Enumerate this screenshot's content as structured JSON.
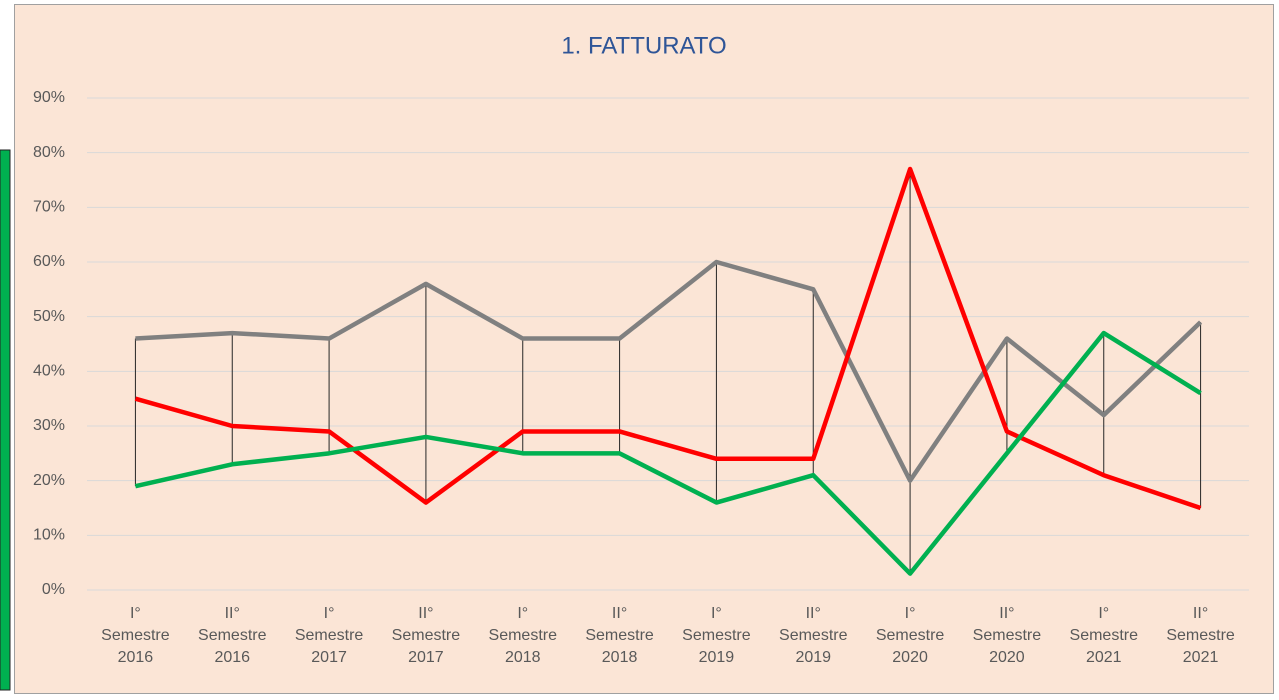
{
  "chart_data": {
    "type": "line",
    "title": "1. FATTURATO",
    "categories": [
      "I° Semestre 2016",
      "II° Semestre 2016",
      "I° Semestre 2017",
      "II° Semestre 2017",
      "I° Semestre 2018",
      "II° Semestre 2018",
      "I° Semestre 2019",
      "II° Semestre 2019",
      "I° Semestre 2020",
      "II° Semestre 2020",
      "I° Semestre 2021",
      "II° Semestre 2021"
    ],
    "series": [
      {
        "color": "#808080",
        "values": [
          46,
          47,
          46,
          56,
          46,
          46,
          60,
          55,
          20,
          46,
          32,
          49
        ]
      },
      {
        "color": "#ff0000",
        "values": [
          35,
          30,
          29,
          16,
          29,
          29,
          24,
          24,
          77,
          29,
          21,
          15
        ]
      },
      {
        "color": "#00b050",
        "values": [
          19,
          23,
          25,
          28,
          25,
          25,
          16,
          21,
          3,
          25,
          47,
          36
        ]
      }
    ],
    "ylim": [
      0,
      90
    ],
    "yticks": [
      {
        "value": 0,
        "label": "0%"
      },
      {
        "value": 10,
        "label": "10%"
      },
      {
        "value": 20,
        "label": "20%"
      },
      {
        "value": 30,
        "label": "30%"
      },
      {
        "value": 40,
        "label": "40%"
      },
      {
        "value": 50,
        "label": "50%"
      },
      {
        "value": 60,
        "label": "60%"
      },
      {
        "value": 70,
        "label": "70%"
      },
      {
        "value": 80,
        "label": "80%"
      },
      {
        "value": 90,
        "label": "90%"
      }
    ],
    "grid": true,
    "high_low_lines": true
  }
}
